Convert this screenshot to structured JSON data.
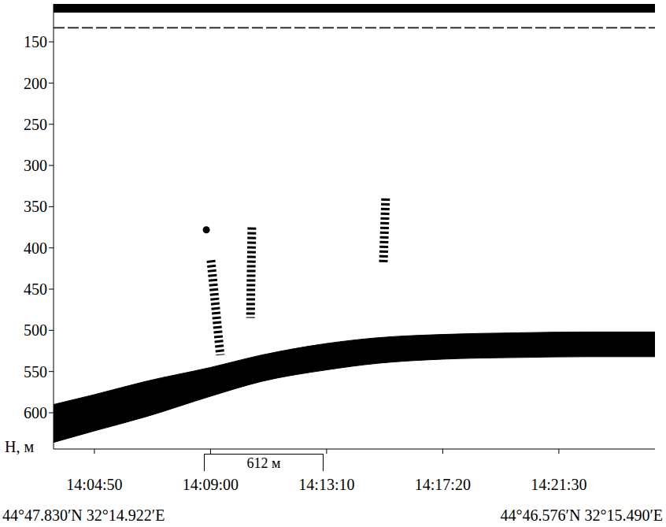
{
  "chart_data": {
    "type": "echogram",
    "y_label": "H, м",
    "xlim": [
      202,
      1497
    ],
    "xticks": [
      {
        "value": 290,
        "label": "14:04:50"
      },
      {
        "value": 540,
        "label": "14:09:00"
      },
      {
        "value": 790,
        "label": "14:13:10"
      },
      {
        "value": 1040,
        "label": "14:17:20"
      },
      {
        "value": 1290,
        "label": "14:21:30"
      }
    ],
    "ylim": [
      644,
      104
    ],
    "yticks": [
      150,
      200,
      250,
      300,
      350,
      400,
      450,
      500,
      550,
      600
    ],
    "color": "#000000",
    "seabed": {
      "x": [
        202,
        290,
        400,
        540,
        650,
        790,
        900,
        1040,
        1200,
        1350,
        1497
      ],
      "top": [
        590,
        578,
        562,
        545,
        530,
        516,
        509,
        505,
        503,
        502,
        502
      ],
      "bottom": [
        636,
        622,
        605,
        580,
        562,
        548,
        540,
        535,
        533,
        532,
        532
      ]
    },
    "surface_band": {
      "x": [
        202,
        1497
      ],
      "top": [
        104,
        104
      ],
      "bottom": [
        114,
        114
      ]
    },
    "scattering_layer": {
      "x": [
        202,
        1497
      ],
      "depth": [
        133,
        133
      ]
    },
    "flares": [
      {
        "x": [
          541,
          561
        ],
        "depth": [
          415,
          530
        ]
      },
      {
        "x": [
          629,
          626
        ],
        "depth": [
          375,
          485
        ]
      },
      {
        "x": [
          917,
          912
        ],
        "depth": [
          340,
          420
        ]
      }
    ],
    "points": {
      "x": [
        531
      ],
      "depth": [
        378
      ]
    },
    "scale_bar": {
      "label": "612 м",
      "x": [
        526,
        783
      ]
    },
    "start_label": "44°47.830′N 32°14.922′E",
    "end_label": "44°46.576′N 32°15.490′E"
  }
}
